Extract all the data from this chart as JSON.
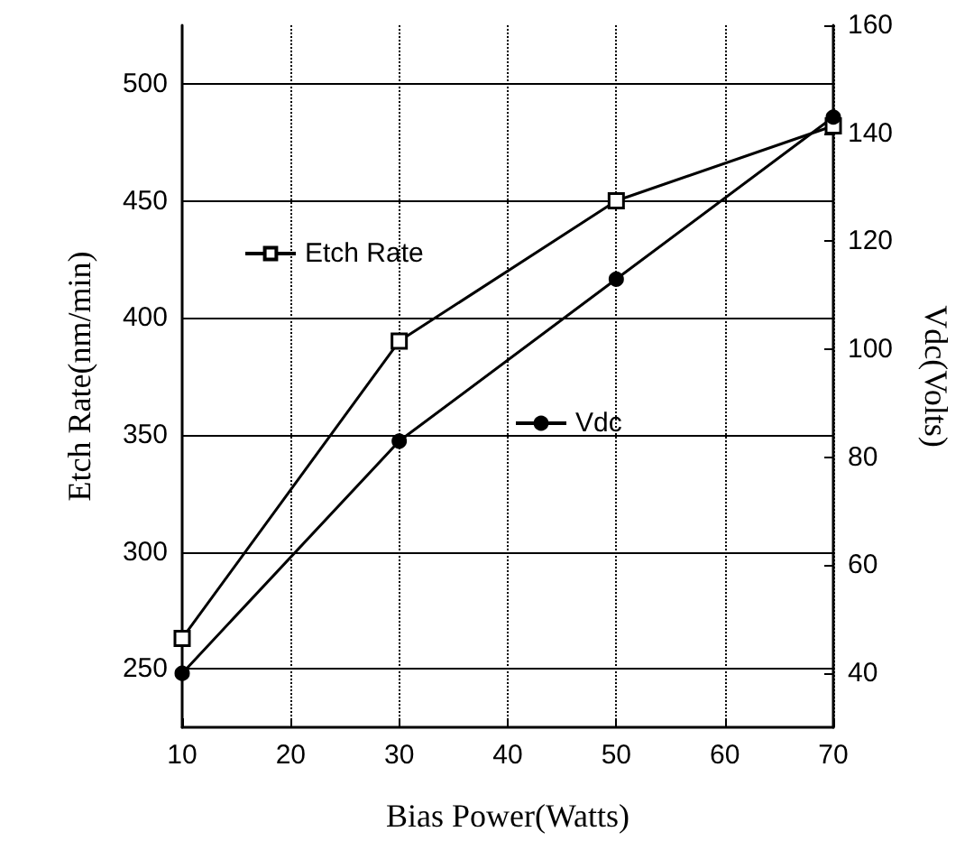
{
  "chart_data": {
    "type": "line",
    "xlabel": "Bias Power(Watts)",
    "ylabel": "Etch Rate(nm/min)",
    "y2label": "Vdc(Volts)",
    "x": [
      10,
      30,
      50,
      70
    ],
    "series": [
      {
        "name": "Etch Rate",
        "color": "#000000",
        "values": [
          263,
          390,
          450,
          482
        ],
        "marker": "square"
      },
      {
        "name": "Vdc",
        "color": "#000000",
        "values": [
          40,
          83,
          113,
          143
        ],
        "axis": "y2",
        "marker": "circle"
      }
    ],
    "xlim": [
      10,
      70
    ],
    "xticks": [
      10,
      20,
      30,
      40,
      50,
      60,
      70
    ],
    "ylim": [
      225,
      525
    ],
    "yticks": [
      250,
      300,
      350,
      400,
      450,
      500
    ],
    "y2lim": [
      30,
      160
    ],
    "y2ticks": [
      40,
      60,
      80,
      100,
      120,
      140,
      160
    ],
    "grid": true,
    "legend": "top left",
    "line_style": "solid"
  }
}
